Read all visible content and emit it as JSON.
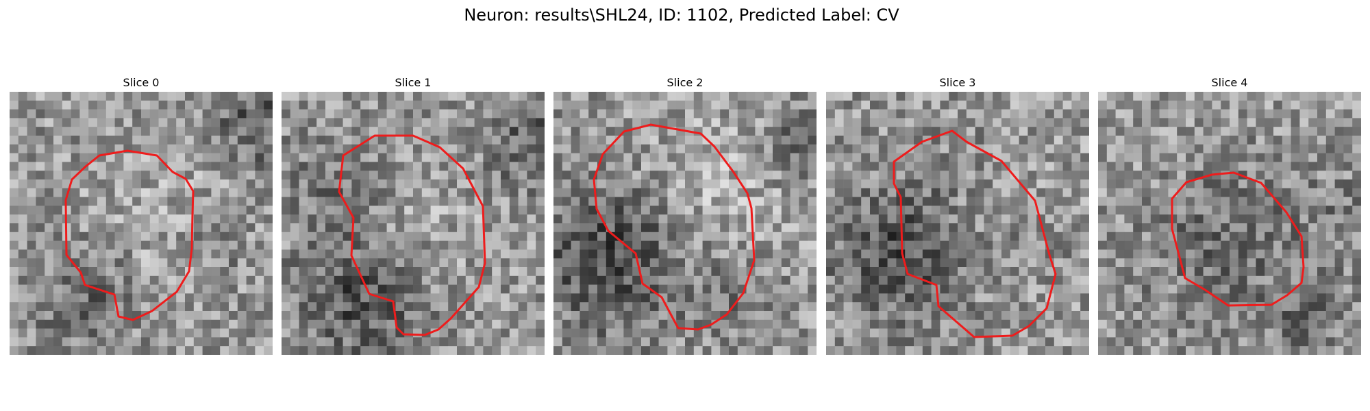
{
  "figure": {
    "title": "Neuron: results\\SHL24, ID: 1102, Predicted Label: CV"
  },
  "contour_color": "#ee1c1c",
  "slices": [
    {
      "title": "Slice 0"
    },
    {
      "title": "Slice 1"
    },
    {
      "title": "Slice 2"
    },
    {
      "title": "Slice 3"
    },
    {
      "title": "Slice 4"
    }
  ]
}
